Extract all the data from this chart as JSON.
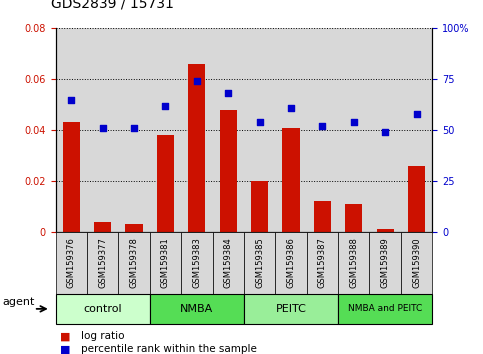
{
  "title": "GDS2839 / 15731",
  "samples": [
    "GSM159376",
    "GSM159377",
    "GSM159378",
    "GSM159381",
    "GSM159383",
    "GSM159384",
    "GSM159385",
    "GSM159386",
    "GSM159387",
    "GSM159388",
    "GSM159389",
    "GSM159390"
  ],
  "log_ratio": [
    0.043,
    0.004,
    0.003,
    0.038,
    0.066,
    0.048,
    0.02,
    0.041,
    0.012,
    0.011,
    0.001,
    0.026
  ],
  "percentile": [
    65,
    51,
    51,
    62,
    74,
    68,
    54,
    61,
    52,
    54,
    49,
    58
  ],
  "groups": [
    {
      "label": "control",
      "start": 0,
      "end": 3,
      "color": "#ccffcc"
    },
    {
      "label": "NMBA",
      "start": 3,
      "end": 6,
      "color": "#55dd55"
    },
    {
      "label": "PEITC",
      "start": 6,
      "end": 9,
      "color": "#99ee99"
    },
    {
      "label": "NMBA and PEITC",
      "start": 9,
      "end": 12,
      "color": "#55dd55"
    }
  ],
  "bar_color": "#cc1100",
  "dot_color": "#0000cc",
  "left_axis_color": "#cc1100",
  "right_axis_color": "#0000cc",
  "ylim_left": [
    0,
    0.08
  ],
  "ylim_right": [
    0,
    100
  ],
  "yticks_left": [
    0,
    0.02,
    0.04,
    0.06,
    0.08
  ],
  "yticks_right": [
    0,
    25,
    50,
    75,
    100
  ],
  "plot_bg_color": "#d8d8d8",
  "agent_label": "agent",
  "legend_log_ratio": "log ratio",
  "legend_percentile": "percentile rank within the sample",
  "title_fontsize": 10,
  "tick_fontsize": 7,
  "sample_fontsize": 6,
  "group_fontsize": 8
}
